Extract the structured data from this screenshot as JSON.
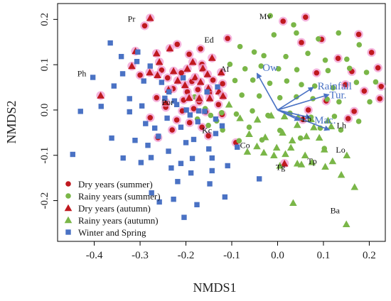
{
  "chart_data": {
    "type": "scatter",
    "xlabel": "NMDS1",
    "ylabel": "NMDS2",
    "xlim": [
      -0.48,
      0.235
    ],
    "ylim": [
      -0.29,
      0.235
    ],
    "xticks": [
      -0.4,
      -0.3,
      -0.2,
      -0.1,
      0.0,
      0.1,
      0.2
    ],
    "xtick_labels": [
      "-0.4",
      "-0.3",
      "-0.2",
      "-0.1",
      "0.0",
      "0.1",
      "0.2"
    ],
    "yticks": [
      -0.2,
      -0.1,
      0.0,
      0.1,
      0.2
    ],
    "ytick_labels": [
      "-0.2",
      "-0.1",
      "0.0",
      "0.1",
      "0.2"
    ],
    "grid": false,
    "legend_position": "bottom-left",
    "series": [
      {
        "name": "Dry years (summer)",
        "marker": "circle",
        "color": "#c0191f",
        "halo": "#f2a6d6",
        "points": [
          [
            -0.29,
            0.186
          ],
          [
            -0.219,
            0.145
          ],
          [
            -0.193,
            0.123
          ],
          [
            -0.168,
            0.135
          ],
          [
            -0.165,
            0.101
          ],
          [
            -0.253,
            0.088
          ],
          [
            -0.21,
            0.082
          ],
          [
            -0.3,
            0.077
          ],
          [
            -0.24,
            0.071
          ],
          [
            -0.187,
            0.063
          ],
          [
            -0.141,
            0.066
          ],
          [
            -0.12,
            0.058
          ],
          [
            -0.228,
            0.047
          ],
          [
            -0.197,
            0.04
          ],
          [
            -0.174,
            0.045
          ],
          [
            -0.149,
            0.037
          ],
          [
            -0.264,
            0.027
          ],
          [
            -0.205,
            0.022
          ],
          [
            -0.171,
            0.018
          ],
          [
            -0.129,
            0.012
          ],
          [
            -0.244,
            0.006
          ],
          [
            -0.208,
            -0.002
          ],
          [
            -0.183,
            0.003
          ],
          [
            -0.157,
            -0.004
          ],
          [
            -0.121,
            -0.01
          ],
          [
            -0.278,
            -0.017
          ],
          [
            -0.22,
            -0.022
          ],
          [
            -0.192,
            -0.028
          ],
          [
            -0.23,
            -0.044
          ],
          [
            -0.165,
            -0.038
          ],
          [
            -0.261,
            -0.061
          ],
          [
            -0.151,
            -0.057
          ],
          [
            -0.091,
            -0.072
          ],
          [
            -0.109,
            0.158
          ],
          [
            0.061,
            0.205
          ],
          [
            0.012,
            0.196
          ],
          [
            0.052,
            0.149
          ],
          [
            0.096,
            0.156
          ],
          [
            0.177,
            0.167
          ],
          [
            0.132,
            0.114
          ],
          [
            0.162,
            0.085
          ],
          [
            0.205,
            0.127
          ],
          [
            0.219,
            0.093
          ],
          [
            0.085,
            0.082
          ],
          [
            0.148,
            0.056
          ],
          [
            0.226,
            0.052
          ],
          [
            0.189,
            0.042
          ],
          [
            0.106,
            0.02
          ],
          [
            0.223,
            0.025
          ],
          [
            0.167,
            -0.003
          ],
          [
            0.055,
            -0.021
          ],
          [
            0.154,
            -0.019
          ],
          [
            0.067,
            0.0
          ]
        ]
      },
      {
        "name": "Rainy years (summer)",
        "marker": "circle",
        "color": "#7ab648",
        "points": [
          [
            -0.016,
            0.208
          ],
          [
            0.035,
            0.188
          ],
          [
            -0.008,
            0.166
          ],
          [
            0.041,
            0.17
          ],
          [
            0.089,
            0.157
          ],
          [
            0.133,
            0.17
          ],
          [
            0.178,
            0.144
          ],
          [
            -0.082,
            0.14
          ],
          [
            -0.051,
            0.128
          ],
          [
            -0.03,
            0.12
          ],
          [
            0.018,
            0.118
          ],
          [
            0.066,
            0.125
          ],
          [
            0.104,
            0.11
          ],
          [
            0.151,
            0.112
          ],
          [
            -0.104,
            0.101
          ],
          [
            -0.071,
            0.091
          ],
          [
            -0.036,
            0.097
          ],
          [
            0.002,
            0.091
          ],
          [
            0.042,
            0.089
          ],
          [
            0.11,
            0.087
          ],
          [
            0.157,
            0.092
          ],
          [
            0.194,
            0.083
          ],
          [
            -0.093,
            0.065
          ],
          [
            -0.054,
            0.066
          ],
          [
            -0.017,
            0.059
          ],
          [
            0.02,
            0.064
          ],
          [
            0.052,
            0.056
          ],
          [
            0.081,
            0.053
          ],
          [
            0.121,
            0.049
          ],
          [
            0.172,
            0.061
          ],
          [
            0.214,
            0.062
          ],
          [
            -0.126,
            0.036
          ],
          [
            -0.078,
            0.033
          ],
          [
            -0.04,
            0.031
          ],
          [
            0.005,
            0.027
          ],
          [
            0.041,
            0.029
          ],
          [
            0.077,
            0.025
          ],
          [
            0.108,
            0.024
          ],
          [
            0.134,
            0.018
          ],
          [
            0.201,
            0.018
          ],
          [
            -0.122,
            -0.006
          ],
          [
            -0.09,
            -0.009
          ],
          [
            -0.055,
            -0.002
          ],
          [
            -0.021,
            -0.012
          ],
          [
            0.027,
            -0.007
          ],
          [
            0.073,
            -0.016
          ],
          [
            0.124,
            -0.014
          ],
          [
            0.177,
            -0.025
          ],
          [
            -0.175,
            -0.02
          ],
          [
            -0.133,
            -0.024
          ],
          [
            -0.12,
            -0.044
          ],
          [
            -0.151,
            -0.034
          ],
          [
            -0.062,
            -0.038
          ],
          [
            0.005,
            -0.045
          ],
          [
            0.093,
            -0.04
          ],
          [
            0.138,
            -0.044
          ],
          [
            -0.084,
            -0.068
          ],
          [
            -0.034,
            -0.066
          ],
          [
            0.05,
            -0.062
          ],
          [
            0.102,
            -0.085
          ],
          [
            -0.181,
            0.029
          ],
          [
            -0.158,
            0.003
          ],
          [
            -0.146,
            -0.012
          ]
        ]
      },
      {
        "name": "Dry years (autumn)",
        "marker": "triangle",
        "color": "#c0191f",
        "halo": "#f2a6d6",
        "points": [
          [
            -0.278,
            0.203
          ],
          [
            -0.31,
            0.13
          ],
          [
            -0.264,
            0.125
          ],
          [
            -0.235,
            0.136
          ],
          [
            -0.185,
            0.106
          ],
          [
            -0.197,
            0.091
          ],
          [
            -0.143,
            0.115
          ],
          [
            -0.163,
            0.092
          ],
          [
            -0.318,
            0.097
          ],
          [
            -0.262,
            0.077
          ],
          [
            -0.279,
            0.083
          ],
          [
            -0.227,
            0.086
          ],
          [
            -0.18,
            0.072
          ],
          [
            -0.168,
            0.062
          ],
          [
            -0.202,
            0.055
          ],
          [
            -0.238,
            0.045
          ],
          [
            -0.151,
            0.048
          ],
          [
            -0.128,
            0.041
          ],
          [
            -0.193,
            0.027
          ],
          [
            -0.171,
            0.026
          ],
          [
            -0.386,
            0.032
          ],
          [
            -0.148,
            0.026
          ],
          [
            -0.244,
            0.017
          ],
          [
            -0.119,
            0.031
          ],
          [
            0.015,
            -0.118
          ],
          [
            -0.218,
            0.065
          ],
          [
            -0.258,
            0.106
          ],
          [
            -0.123,
            0.083
          ],
          [
            -0.153,
            0.079
          ]
        ]
      },
      {
        "name": "Rainy years (autumn)",
        "marker": "triangle",
        "color": "#7ab648",
        "points": [
          [
            -0.106,
            0.012
          ],
          [
            -0.082,
            -0.018
          ],
          [
            -0.044,
            -0.021
          ],
          [
            -0.014,
            -0.012
          ],
          [
            0.015,
            -0.014
          ],
          [
            0.045,
            -0.016
          ],
          [
            0.073,
            -0.02
          ],
          [
            0.11,
            -0.023
          ],
          [
            0.043,
            -0.033
          ],
          [
            0.079,
            -0.038
          ],
          [
            0.117,
            -0.036
          ],
          [
            -0.062,
            -0.053
          ],
          [
            -0.027,
            -0.06
          ],
          [
            0.011,
            -0.05
          ],
          [
            0.032,
            -0.067
          ],
          [
            0.063,
            -0.058
          ],
          [
            0.091,
            -0.061
          ],
          [
            -0.045,
            -0.08
          ],
          [
            -0.002,
            -0.083
          ],
          [
            0.029,
            -0.083
          ],
          [
            0.06,
            -0.1
          ],
          [
            0.102,
            -0.087
          ],
          [
            0.151,
            -0.1
          ],
          [
            -0.066,
            -0.092
          ],
          [
            0.005,
            -0.123
          ],
          [
            0.043,
            -0.118
          ],
          [
            0.075,
            -0.115
          ],
          [
            0.12,
            -0.113
          ],
          [
            0.017,
            -0.097
          ],
          [
            0.104,
            -0.125
          ],
          [
            0.139,
            -0.143
          ],
          [
            0.168,
            -0.17
          ],
          [
            0.034,
            -0.205
          ],
          [
            0.15,
            -0.252
          ],
          [
            -0.008,
            -0.1
          ],
          [
            -0.03,
            -0.094
          ],
          [
            0.052,
            -0.12
          ]
        ]
      },
      {
        "name": "Winter and Spring",
        "marker": "square",
        "color": "#4a72c4",
        "points": [
          [
            -0.365,
            0.148
          ],
          [
            -0.341,
            0.118
          ],
          [
            -0.307,
            0.107
          ],
          [
            -0.338,
            0.08
          ],
          [
            -0.278,
            0.097
          ],
          [
            -0.403,
            0.072
          ],
          [
            -0.357,
            0.053
          ],
          [
            -0.292,
            0.064
          ],
          [
            -0.253,
            0.061
          ],
          [
            -0.323,
            0.025
          ],
          [
            -0.296,
            0.009
          ],
          [
            -0.385,
            0.008
          ],
          [
            -0.246,
            0.026
          ],
          [
            -0.22,
            0.012
          ],
          [
            -0.199,
            0.0
          ],
          [
            -0.191,
            -0.011
          ],
          [
            -0.172,
            -0.002
          ],
          [
            -0.241,
            -0.018
          ],
          [
            -0.323,
            -0.004
          ],
          [
            -0.288,
            -0.03
          ],
          [
            -0.43,
            -0.003
          ],
          [
            -0.211,
            -0.038
          ],
          [
            -0.174,
            -0.026
          ],
          [
            -0.135,
            -0.02
          ],
          [
            -0.26,
            -0.058
          ],
          [
            -0.311,
            -0.067
          ],
          [
            -0.362,
            -0.062
          ],
          [
            -0.283,
            -0.078
          ],
          [
            -0.238,
            -0.091
          ],
          [
            -0.2,
            -0.072
          ],
          [
            -0.183,
            -0.065
          ],
          [
            -0.15,
            -0.086
          ],
          [
            -0.337,
            -0.106
          ],
          [
            -0.298,
            -0.116
          ],
          [
            -0.276,
            -0.105
          ],
          [
            -0.232,
            -0.128
          ],
          [
            -0.211,
            -0.118
          ],
          [
            -0.189,
            -0.139
          ],
          [
            -0.143,
            -0.106
          ],
          [
            -0.148,
            -0.163
          ],
          [
            -0.176,
            -0.209
          ],
          [
            -0.258,
            -0.203
          ],
          [
            -0.204,
            -0.237
          ],
          [
            -0.115,
            -0.192
          ],
          [
            -0.447,
            -0.098
          ],
          [
            -0.088,
            -0.082
          ],
          [
            -0.109,
            -0.123
          ],
          [
            -0.04,
            -0.152
          ],
          [
            -0.135,
            -0.052
          ],
          [
            -0.305,
            0.128
          ],
          [
            -0.186,
            -0.107
          ],
          [
            -0.237,
            0.04
          ],
          [
            -0.218,
            -0.158
          ],
          [
            -0.275,
            -0.183
          ],
          [
            -0.143,
            -0.134
          ],
          [
            -0.206,
            0.071
          ],
          [
            -0.121,
            -0.035
          ],
          [
            -0.159,
            -0.003
          ],
          [
            -0.225,
            0.02
          ],
          [
            -0.268,
            -0.04
          ],
          [
            -0.227,
            -0.197
          ],
          [
            -0.131,
            0.051
          ],
          [
            -0.154,
            0.04
          ]
        ]
      }
    ],
    "vectors": [
      {
        "label": "Ow",
        "x": -0.045,
        "y": 0.081,
        "label_x": -0.033,
        "label_y": 0.094
      },
      {
        "label": "Rainfall",
        "x": 0.078,
        "y": 0.05,
        "label_x": 0.087,
        "label_y": 0.053
      },
      {
        "label": "Tur.",
        "x": 0.112,
        "y": 0.034,
        "label_x": 0.113,
        "label_y": 0.034
      },
      {
        "label": "Mac.",
        "x": 0.072,
        "y": -0.017,
        "label_x": 0.08,
        "label_y": -0.022
      },
      {
        "label": "",
        "x": 0.113,
        "y": -0.044
      },
      {
        "label": "",
        "x": 0.048,
        "y": -0.023
      }
    ],
    "vector_color": "#4a72c4",
    "species_labels": [
      {
        "label": "Pr",
        "x": -0.327,
        "y": 0.201
      },
      {
        "label": "Mv",
        "x": -0.04,
        "y": 0.207
      },
      {
        "label": "Ed",
        "x": -0.16,
        "y": 0.155
      },
      {
        "label": "Ph",
        "x": -0.437,
        "y": 0.081
      },
      {
        "label": "Af",
        "x": -0.125,
        "y": 0.091
      },
      {
        "label": "Por",
        "x": -0.253,
        "y": 0.017
      },
      {
        "label": "Kc",
        "x": -0.165,
        "y": -0.045
      },
      {
        "label": "Lb",
        "x": 0.053,
        "y": -0.02
      },
      {
        "label": "Lh",
        "x": 0.129,
        "y": -0.034
      },
      {
        "label": "Co",
        "x": -0.082,
        "y": -0.078
      },
      {
        "label": "Lo",
        "x": 0.127,
        "y": -0.088
      },
      {
        "label": "Tg",
        "x": -0.004,
        "y": -0.126
      },
      {
        "label": "Tp",
        "x": 0.065,
        "y": -0.113
      },
      {
        "label": "Ba",
        "x": 0.115,
        "y": -0.222
      }
    ]
  }
}
